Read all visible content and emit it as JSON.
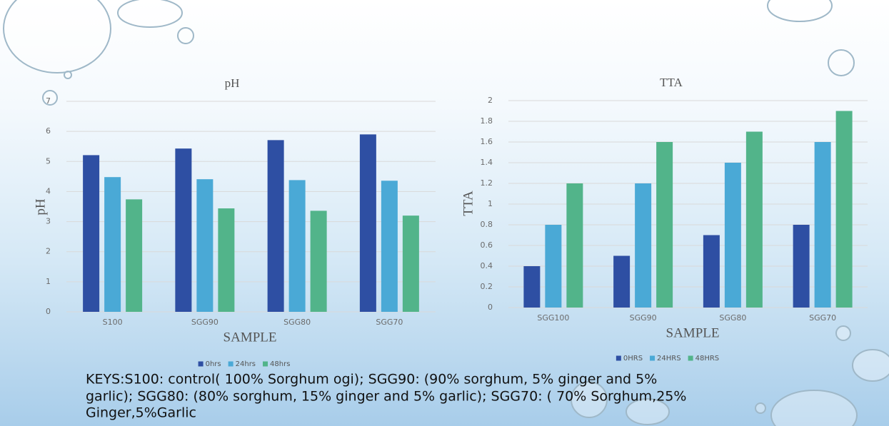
{
  "chart_data": [
    {
      "type": "bar",
      "title": "pH",
      "x_label": "SAMPLE",
      "y_label": "pH",
      "categories": [
        "S100",
        "SGG90",
        "SGG80",
        "SGG70"
      ],
      "series": [
        {
          "name": "0hrs",
          "color": "#2e4fa3",
          "values": [
            5.21,
            5.43,
            5.71,
            5.9
          ]
        },
        {
          "name": "24hrs",
          "color": "#4aa9d6",
          "values": [
            4.48,
            4.41,
            4.38,
            4.36
          ]
        },
        {
          "name": "48hrs",
          "color": "#52b48a",
          "values": [
            3.74,
            3.44,
            3.36,
            3.2
          ]
        }
      ],
      "ylim": [
        0,
        7
      ],
      "yticks": [
        0,
        1,
        2,
        3,
        4,
        5,
        6,
        7
      ],
      "grid": true,
      "legend": "bottom"
    },
    {
      "type": "bar",
      "title": "TTA",
      "x_label": "SAMPLE",
      "y_label": "TTA",
      "categories": [
        "SGG100",
        "SGG90",
        "SGG80",
        "SGG70"
      ],
      "series": [
        {
          "name": "0HRS",
          "color": "#2e4fa3",
          "values": [
            0.4,
            0.5,
            0.7,
            0.8
          ]
        },
        {
          "name": "24HRS",
          "color": "#4aa9d6",
          "values": [
            0.8,
            1.2,
            1.4,
            1.6
          ]
        },
        {
          "name": "48HRS",
          "color": "#52b48a",
          "values": [
            1.2,
            1.6,
            1.7,
            1.9
          ]
        }
      ],
      "ylim": [
        0,
        2
      ],
      "yticks": [
        0,
        0.2,
        0.4,
        0.6,
        0.8,
        1,
        1.2,
        1.4,
        1.6,
        1.8,
        2
      ],
      "grid": true,
      "legend": "bottom"
    }
  ],
  "keys": [
    "KEYS:S100: control( 100% Sorghum ogi); SGG90: (90% sorghum, 5% ginger and 5%",
    "garlic); SGG80: (80% sorghum, 15% ginger and 5% garlic); SGG70: ( 70% Sorghum,25%",
    "Ginger,5%Garlic"
  ]
}
